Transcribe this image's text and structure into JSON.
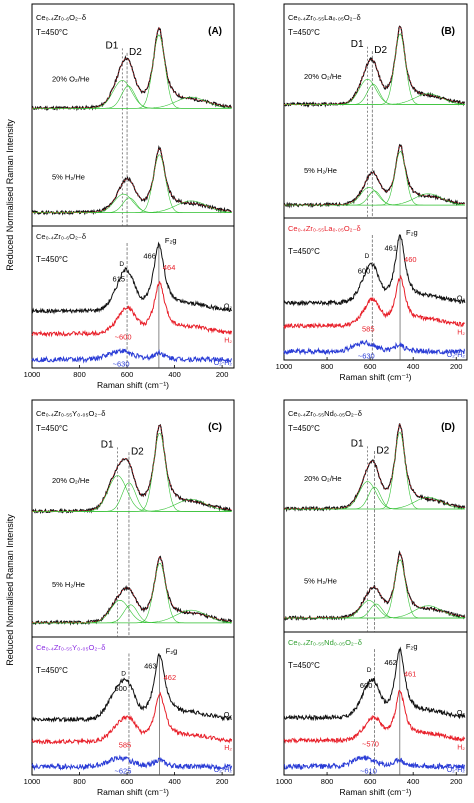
{
  "figure": {
    "ylabel": "Reduced Normalised Raman Intensity",
    "xlabel": "Raman shift (cm⁻¹)",
    "colors": {
      "o2": "#111111",
      "h2": "#e8202a",
      "diff": "#2a3cd6",
      "fit": "#36c236",
      "guide": "#555555"
    }
  },
  "chart_data": [
    {
      "type": "line",
      "panel": "A",
      "panel_label": "(A)",
      "composition": "Ce0.4Zr0.6O2-δ",
      "composition_top": "Ce₀.₄Zr₀.₆O₂₋δ",
      "temperature": "T=450°C",
      "d1_label": "D1",
      "d2_label": "D2",
      "d1_position": 620,
      "d2_position": 600,
      "upper_conditions": [
        "20% O₂/He",
        "5% H₂/He"
      ],
      "bottom_title": "Ce₀.₄Zr₀.₆O₂₋δ",
      "bottom_title_color": "#111111",
      "peak_label": "F₂g",
      "peak_o2": "466",
      "peak_h2": "464",
      "d_label": "D",
      "d_o2": "615",
      "d_h2": "~600",
      "d_diff": "~630",
      "series_labels": [
        "O₂",
        "H₂",
        "O₂-H₂"
      ],
      "xlim": [
        1000,
        150
      ],
      "x_ticks": [
        "1000",
        "800",
        "600",
        "400",
        "200"
      ],
      "ox_peaks": {
        "f2g": 466,
        "d1": 620,
        "d2": 595,
        "f2g_h": 1.0,
        "d_h": 0.35
      },
      "red_peaks": {
        "f2g": 464,
        "d1": 615,
        "d2": 590,
        "f2g_h": 0.75,
        "d_h": 0.22
      }
    },
    {
      "type": "line",
      "panel": "B",
      "panel_label": "(B)",
      "composition": "Ce0.4Zr0.55La0.05O2-δ",
      "composition_top": "Ce₀.₄Zr₀.₅₅La₀.₀₅O₂₋δ",
      "temperature": "T=450°C",
      "d1_label": "D1",
      "d2_label": "D2",
      "d1_position": 612,
      "d2_position": 590,
      "upper_conditions": [
        "20% O₂/He",
        "5% H₂/He"
      ],
      "bottom_title": "Ce₀.₄Zr₀.₅₅La₀.₀₅O₂₋δ",
      "bottom_title_color": "#e8202a",
      "peak_label": "F₂g",
      "peak_o2": "461",
      "peak_h2": "460",
      "d_label": "D",
      "d_o2": "600",
      "d_h2": "585",
      "d_diff": "~630",
      "series_labels": [
        "O₂",
        "H₂",
        "O₂-H₂"
      ],
      "xlim": [
        1000,
        150
      ],
      "x_ticks": [
        "1000",
        "800",
        "600",
        "400",
        "200"
      ],
      "ox_peaks": {
        "f2g": 461,
        "d1": 612,
        "d2": 585,
        "f2g_h": 1.0,
        "d_h": 0.33
      },
      "red_peaks": {
        "f2g": 460,
        "d1": 605,
        "d2": 580,
        "f2g_h": 0.72,
        "d_h": 0.22
      }
    },
    {
      "type": "line",
      "panel": "C",
      "panel_label": "(C)",
      "composition": "Ce0.4Zr0.55Y0.05O2-δ",
      "composition_top": "Ce₀.₄Zr₀.₅₅Y₀.₀₅O₂₋δ",
      "temperature": "T=450°C",
      "d1_label": "D1",
      "d2_label": "D2",
      "d1_position": 640,
      "d2_position": 592,
      "upper_conditions": [
        "20% O₂/He",
        "5% H₂/He"
      ],
      "bottom_title": "Ce₀.₄Zr₀.₅₅Y₀.₀₅O₂₋δ",
      "bottom_title_color": "#8a2be2",
      "peak_label": "F₂g",
      "peak_o2": "463",
      "peak_h2": "462",
      "d_label": "D",
      "d_o2": "600",
      "d_h2": "585",
      "d_diff": "~625",
      "series_labels": [
        "O₂",
        "H₂",
        "O₂-H₂"
      ],
      "xlim": [
        1000,
        150
      ],
      "x_ticks": [
        "1000",
        "800",
        "600",
        "400",
        "200"
      ],
      "ox_peaks": {
        "f2g": 463,
        "d1": 640,
        "d2": 592,
        "f2g_h": 1.0,
        "d_h": 0.42
      },
      "red_peaks": {
        "f2g": 462,
        "d1": 630,
        "d2": 585,
        "f2g_h": 0.72,
        "d_h": 0.25
      }
    },
    {
      "type": "line",
      "panel": "D",
      "panel_label": "(D)",
      "composition": "Ce0.4Zr0.55Nd0.05O2-δ",
      "composition_top": "Ce₀.₄Zr₀.₅₅Nd₀.₀₅O₂₋δ",
      "temperature": "T=450°C",
      "d1_label": "D1",
      "d2_label": "D2",
      "d1_position": 612,
      "d2_position": 580,
      "upper_conditions": [
        "20% O₂/He",
        "5% H₂/He"
      ],
      "bottom_title": "Ce₀.₄Zr₀.₅₅Nd₀.₀₅O₂₋δ",
      "bottom_title_color": "#2e9e2e",
      "peak_label": "F₂g",
      "peak_o2": "462",
      "peak_h2": "461",
      "d_label": "D",
      "d_o2": "600",
      "d_h2": "~570",
      "d_diff": "~610",
      "series_labels": [
        "O₂",
        "H₂",
        "O₂-H₂"
      ],
      "xlim": [
        1000,
        150
      ],
      "x_ticks": [
        "1000",
        "800",
        "600",
        "400",
        "200"
      ],
      "ox_peaks": {
        "f2g": 462,
        "d1": 612,
        "d2": 580,
        "f2g_h": 1.0,
        "d_h": 0.33
      },
      "red_peaks": {
        "f2g": 461,
        "d1": 605,
        "d2": 572,
        "f2g_h": 0.72,
        "d_h": 0.2
      }
    }
  ]
}
